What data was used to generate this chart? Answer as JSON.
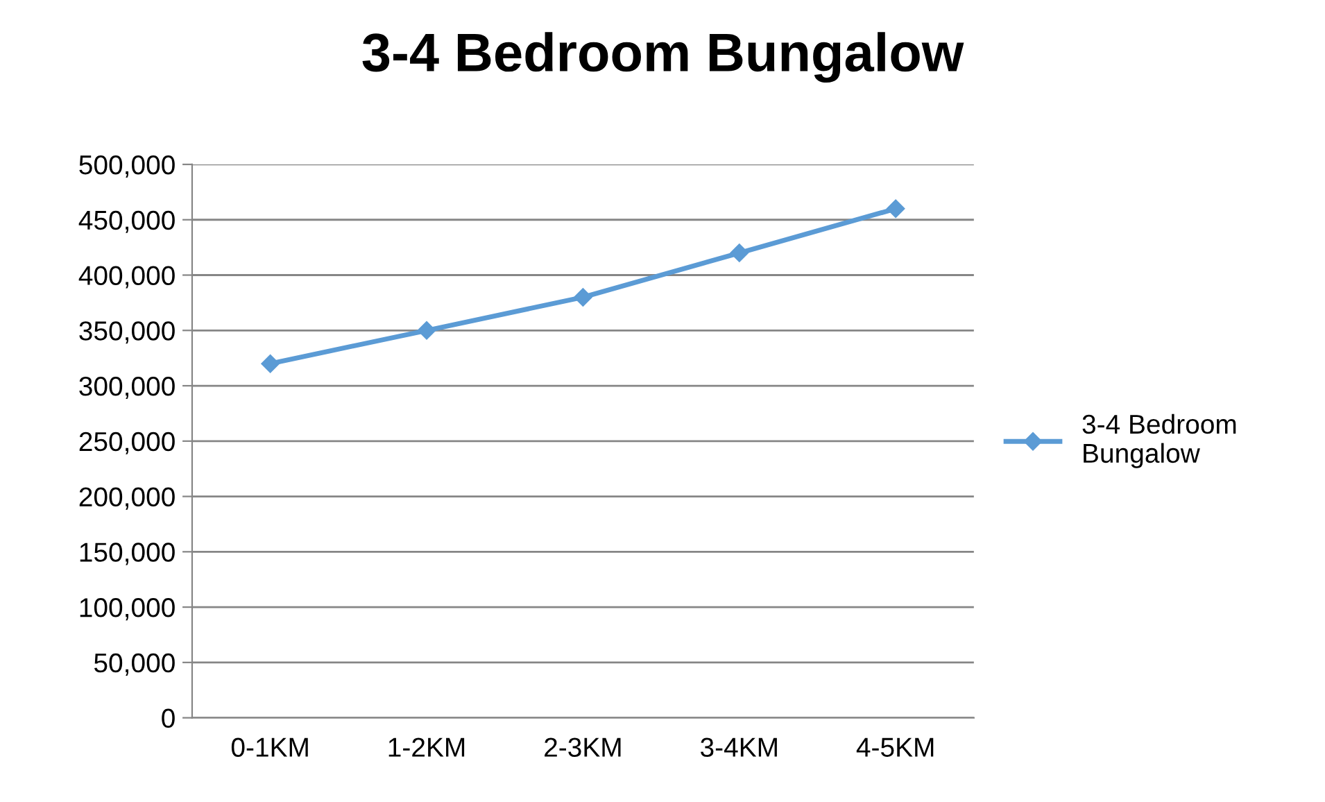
{
  "chart_data": {
    "type": "line",
    "title": "3-4 Bedroom Bungalow",
    "categories": [
      "0-1KM",
      "1-2KM",
      "2-3KM",
      "3-4KM",
      "4-5KM"
    ],
    "series": [
      {
        "name": "3-4 Bedroom Bungalow",
        "color": "#5b9bd5",
        "values": [
          320000,
          350000,
          380000,
          420000,
          460000
        ]
      }
    ],
    "ylim": [
      0,
      500000
    ],
    "yticks": [
      {
        "value": 0,
        "label": "0"
      },
      {
        "value": 50000,
        "label": "50,000"
      },
      {
        "value": 100000,
        "label": "100,000"
      },
      {
        "value": 150000,
        "label": "150,000"
      },
      {
        "value": 200000,
        "label": "200,000"
      },
      {
        "value": 250000,
        "label": "250,000"
      },
      {
        "value": 300000,
        "label": "300,000"
      },
      {
        "value": 350000,
        "label": "350,000"
      },
      {
        "value": 400000,
        "label": "400,000"
      },
      {
        "value": 450000,
        "label": "450,000"
      },
      {
        "value": 500000,
        "label": "500,000"
      }
    ],
    "grid": "y",
    "legend": "right",
    "marker": "diamond",
    "line_style": "solid"
  }
}
